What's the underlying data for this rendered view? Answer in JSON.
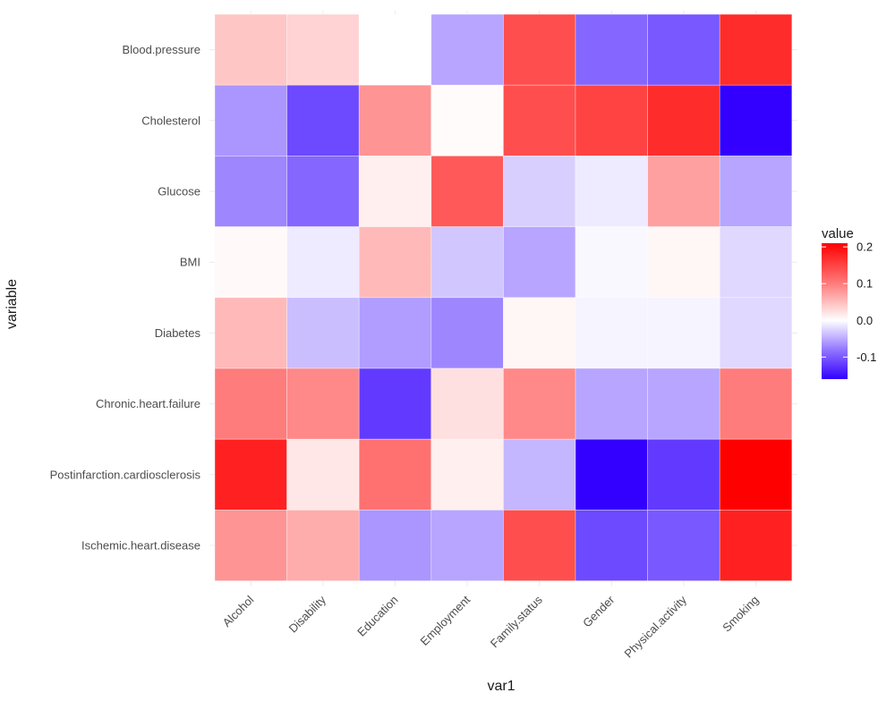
{
  "chart_data": {
    "type": "heatmap",
    "title": "",
    "xlabel": "var1",
    "ylabel": "variable",
    "legend": {
      "title": "value",
      "placement": "right",
      "ticks": [
        {
          "label": "0.2",
          "value": 0.2
        },
        {
          "label": "0.1",
          "value": 0.1
        },
        {
          "label": "0.0",
          "value": 0.0
        },
        {
          "label": "-0.1",
          "value": -0.1
        }
      ],
      "range": [
        -0.16,
        0.21
      ]
    },
    "colors": {
      "low": "#3300ff",
      "mid": "#ffffff",
      "high": "#ff0000"
    },
    "grid": true,
    "x_categories": [
      "Alcohol",
      "Disability",
      "Education",
      "Employment",
      "Family.status",
      "Gender",
      "Physical.activity",
      "Smoking"
    ],
    "y_categories": [
      "Blood.pressure",
      "Cholesterol",
      "Glucose",
      "BMI",
      "Diabetes",
      "Chronic.heart.failure",
      "Postinfarction.cardiosclerosis",
      "Ischemic.heart.disease"
    ],
    "values": [
      [
        0.04,
        0.03,
        0.0,
        -0.05,
        0.14,
        -0.09,
        -0.1,
        0.17
      ],
      [
        -0.06,
        -0.11,
        0.08,
        0.002,
        0.14,
        0.15,
        0.17,
        -0.16
      ],
      [
        -0.07,
        -0.09,
        0.01,
        0.13,
        -0.025,
        -0.01,
        0.07,
        -0.05
      ],
      [
        0.003,
        -0.01,
        0.05,
        -0.03,
        -0.05,
        -0.003,
        0.005,
        -0.02
      ],
      [
        0.05,
        -0.035,
        -0.055,
        -0.07,
        0.005,
        -0.005,
        -0.005,
        -0.02
      ],
      [
        0.1,
        0.09,
        -0.12,
        0.02,
        0.09,
        -0.05,
        -0.05,
        0.1
      ],
      [
        0.18,
        0.015,
        0.11,
        0.01,
        -0.04,
        -0.16,
        -0.12,
        0.21
      ],
      [
        0.08,
        0.06,
        -0.06,
        -0.05,
        0.14,
        -0.11,
        -0.1,
        0.18
      ]
    ]
  }
}
